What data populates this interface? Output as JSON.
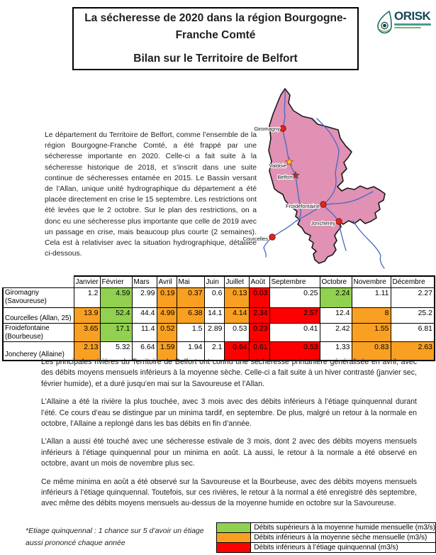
{
  "title": {
    "main": "La sécheresse de 2020 dans la région Bourgogne-Franche Comté",
    "subtitle": "Bilan sur le Territoire de Belfort"
  },
  "logo": {
    "name": "ORISK"
  },
  "intro": "Le département du Territoire de Belfort, comme l’ensemble de la région Bourgogne-Franche Comté, a été frappé par une sécheresse importante en 2020. Celle-ci a fait suite à la sécheresse historique de 2018, et s’inscrit dans une suite continue de sécheresses entamée en 2015. Le Bassin versant de l’Allan, unique unité hydrographique du département a été placée directement en crise le 15 septembre. Les restrictions ont été levées que le 2 octobre. Sur le plan des restrictions, on a donc eu une sécheresse plus importante que celle de 2019 avec un passage en crise, mais beaucoup plus courte (2 semaines). Cela est à relativiser avec la situation hydrographique, détaillée ci-dessous.",
  "map": {
    "places": [
      {
        "label": "Giromagny",
        "marker": "dot"
      },
      {
        "label": "Valdoie",
        "marker": "star-yellow"
      },
      {
        "label": "Belfort",
        "marker": "star-red"
      },
      {
        "label": "Froidefontaine",
        "marker": "dot"
      },
      {
        "label": "Joncherey",
        "marker": "dot"
      },
      {
        "label": "Courcelles",
        "marker": "dot"
      }
    ],
    "colors": {
      "region_fill": "#E091B4",
      "region_border": "#1a1a1a",
      "river": "#4468C4",
      "dot_red": "#E02519",
      "dot_border": "#871410",
      "star_yellow": "#FFD400",
      "star_red": "#C3242B"
    }
  },
  "table": {
    "months": [
      "Janvier",
      "Février",
      "Mars",
      "Avril",
      "Mai",
      "Juin",
      "Juillet",
      "Août",
      "Septembre",
      "Octobre",
      "Novembre",
      "Décembre"
    ],
    "rows": [
      {
        "station_lines": [
          "Giromagny",
          "(Savoureuse)"
        ],
        "values": [
          "1.2",
          "4.59",
          "2.99",
          "0.19",
          "0.37",
          "0.6",
          "0.13",
          "0.03",
          "0.25",
          "2.24",
          "1.11",
          "2.27"
        ],
        "levels": [
          "",
          "wet",
          "",
          "dry",
          "dry",
          "",
          "dry",
          "crit",
          "",
          "wet",
          "",
          ""
        ]
      },
      {
        "station_lines": [
          "Courcelles (Allan, 25)"
        ],
        "values": [
          "13.9",
          "52.4",
          "44.4",
          "4.99",
          "6.38",
          "14.1",
          "4.14",
          "2.34",
          "2.57",
          "12.4",
          "8",
          "25.2"
        ],
        "levels": [
          "dry",
          "wet",
          "",
          "dry",
          "dry",
          "",
          "dry",
          "crit",
          "crit",
          "",
          "dry",
          ""
        ]
      },
      {
        "station_lines": [
          "Froidefontaine",
          "(Bourbeuse)"
        ],
        "values": [
          "3.65",
          "17.1",
          "11.4",
          "0.52",
          "1.5",
          "2.89",
          "0.53",
          "0.23",
          "0.41",
          "2.42",
          "1.55",
          "6.81"
        ],
        "levels": [
          "dry",
          "wet",
          "",
          "dry",
          "",
          "",
          "",
          "crit",
          "",
          "",
          "dry",
          ""
        ]
      },
      {
        "station_lines": [
          "Joncherey (Allaine)"
        ],
        "values": [
          "2.13",
          "5.32",
          "6.64",
          "1.59",
          "1.94",
          "2.1",
          "0.64",
          "0.61",
          "0.53",
          "1.33",
          "0.83",
          "2.63"
        ],
        "levels": [
          "dry",
          "",
          "",
          "dry",
          "",
          "",
          "crit",
          "crit",
          "crit",
          "",
          "dry",
          "dry"
        ]
      }
    ]
  },
  "paragraphs": [
    "Les principales rivières du Territoire de Belfort ont connu une sécheresse printanière généralisée en avril, avec des débits moyens mensuels inférieurs à la moyenne sèche. Celle-ci a fait suite à un hiver contrasté (janvier sec, février humide), et a duré jusqu’en mai sur la Savoureuse et l’Allan.",
    "L’Allaine a été la rivière la plus touchée, avec 3 mois avec des débits inférieurs à l’étiage quinquennal durant l’été. Ce cours d’eau se distingue par un minima tardif, en septembre. De plus, malgré un retour à la normale en octobre, l’Allaine a replongé dans les bas débits en fin d’année.",
    "L’Allan a aussi été touché avec une sécheresse estivale de 3 mois, dont 2 avec des débits moyens mensuels inférieurs à l’étiage quinquennal pour un minima en août. Là aussi, le retour à la normale a été observé en octobre, avant un mois de novembre plus sec.",
    "Ce même minima en août a été observé sur la Savoureuse et la Bourbeuse, avec des débits moyens mensuels inférieurs à l’étiage quinquennal. Toutefois, sur ces rivières, le retour à la normal a été enregistré dès septembre, avec même des débits moyens mensuels au-dessus de la moyenne humide en octobre sur la Savoureuse."
  ],
  "footnote": "*Etiage quinquennal : 1 chance sur 5 d’avoir un étiage aussi prononcé chaque année",
  "legend": {
    "items": [
      {
        "color": "#92D050",
        "label": "Débits supérieurs à la moyenne humide mensuelle (m3/s)"
      },
      {
        "color": "#F9A023",
        "label": "Débits inférieurs à la moyenne sèche mensuelle (m3/s)"
      },
      {
        "color": "#FF0000",
        "label": "Débits inférieurs à l’étiage quinquennal (m3/s)"
      }
    ]
  },
  "level_colors": {
    "wet": "#92D050",
    "dry": "#F9A023",
    "crit": "#FF0000"
  }
}
